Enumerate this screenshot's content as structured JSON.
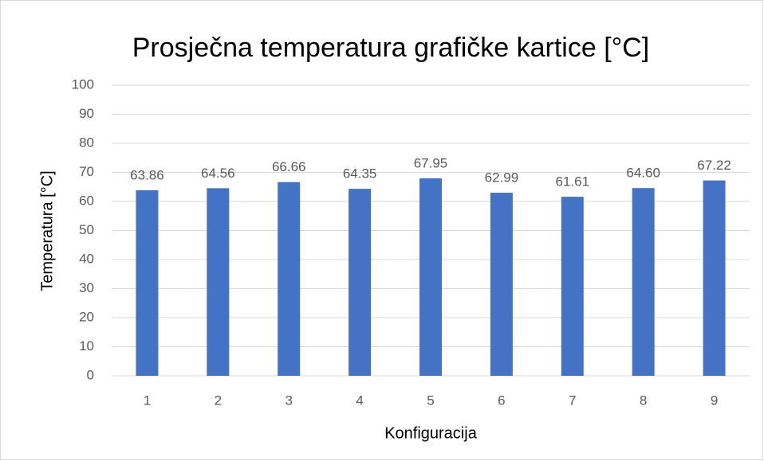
{
  "chart_data": {
    "type": "bar",
    "title": "Prosječna temperatura grafičke kartice [°C]",
    "x_label": "Konfiguracija",
    "y_label": "Temperatura [°C]",
    "categories": [
      "1",
      "2",
      "3",
      "4",
      "5",
      "6",
      "7",
      "8",
      "9"
    ],
    "values": [
      63.86,
      64.56,
      66.66,
      64.35,
      67.95,
      62.99,
      61.61,
      64.6,
      67.22
    ],
    "value_labels": [
      "63.86",
      "64.56",
      "66.66",
      "64.35",
      "67.95",
      "62.99",
      "61.61",
      "64.60",
      "67.22"
    ],
    "color": "#4472c4",
    "ylim": [
      0,
      100
    ],
    "yticks": [
      0,
      10,
      20,
      30,
      40,
      50,
      60,
      70,
      80,
      90,
      100
    ],
    "grid": true
  }
}
